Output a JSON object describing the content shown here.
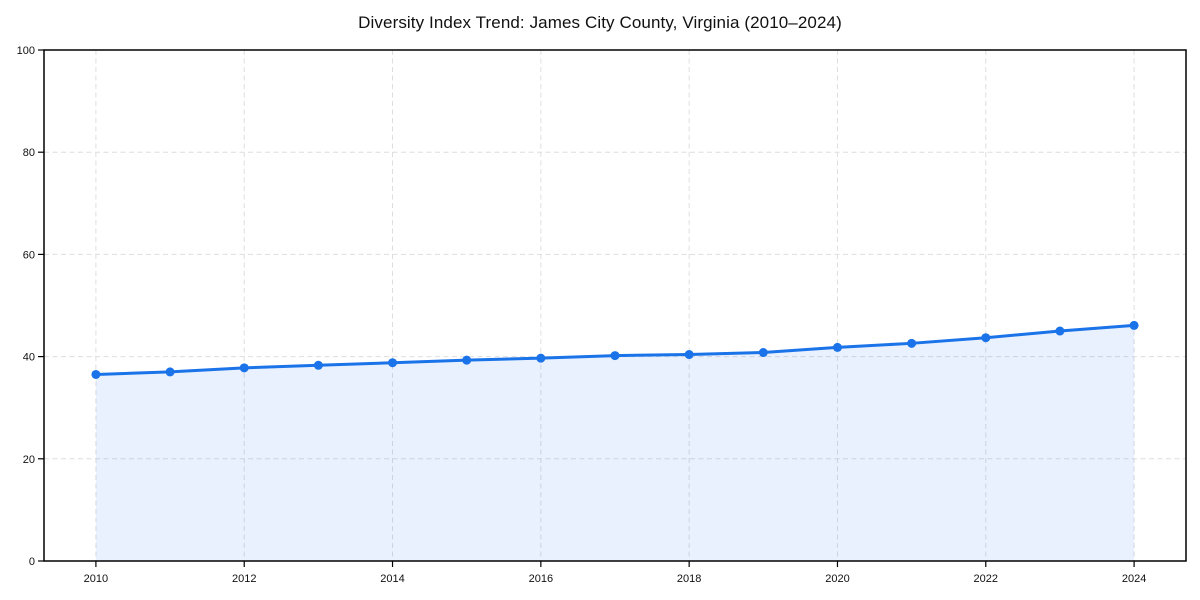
{
  "chart_data": {
    "type": "area",
    "title": "Diversity Index Trend: James City County, Virginia (2010–2024)",
    "series_name": "Diversity Index",
    "x": [
      2010,
      2011,
      2012,
      2013,
      2014,
      2015,
      2016,
      2017,
      2018,
      2019,
      2020,
      2021,
      2022,
      2023,
      2024
    ],
    "values": [
      36.5,
      37.0,
      37.8,
      38.3,
      38.8,
      39.3,
      39.7,
      40.2,
      40.4,
      40.8,
      41.8,
      42.6,
      43.7,
      45.0,
      46.1
    ],
    "xlabel": "",
    "ylabel": "",
    "xlim": [
      2009.3,
      2024.7
    ],
    "ylim": [
      0,
      100
    ],
    "xticks": [
      2010,
      2012,
      2014,
      2016,
      2018,
      2020,
      2022,
      2024
    ],
    "yticks": [
      0,
      20,
      40,
      60,
      80,
      100
    ],
    "grid": true,
    "grid_style": "dashed",
    "legend": "none",
    "marker": "circle",
    "line_color": "#1a73e8",
    "marker_color": "#1a73e8",
    "fill_color": "#1a73e8",
    "fill_opacity": 0.1,
    "grid_color": "#dedede",
    "axis_color": "#000000",
    "text_color": "#111111"
  }
}
